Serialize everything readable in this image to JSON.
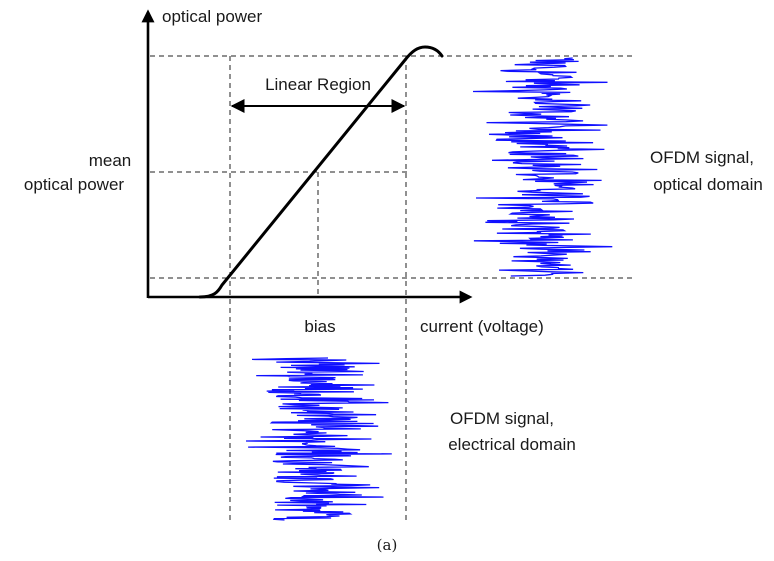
{
  "labels": {
    "y_axis": "optical power",
    "x_axis": "current (voltage)",
    "linear_region": "Linear Region",
    "mean_line1": "mean",
    "mean_line2": "optical power",
    "bias": "bias",
    "optical_signal_line1": "OFDM signal,",
    "optical_signal_line2": "optical domain",
    "electrical_signal_line1": "OFDM signal,",
    "electrical_signal_line2": "electrical domain",
    "caption": "(a)"
  },
  "colors": {
    "axis": "#000000",
    "signal": "#1010ff",
    "text": "#1a1a1a"
  }
}
